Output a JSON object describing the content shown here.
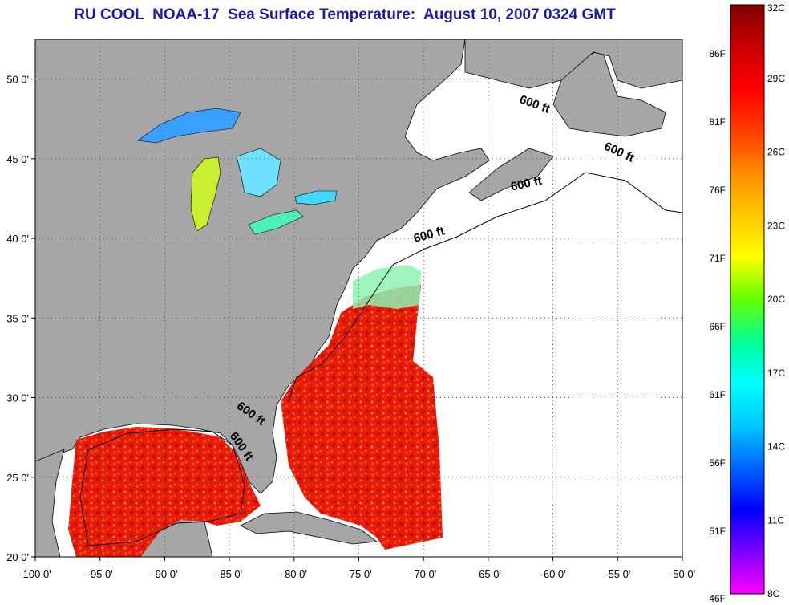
{
  "title": "RU COOL  NOAA-17  Sea Surface Temperature:  August 10, 2007 0324 GMT",
  "map": {
    "lon_range": [
      -100,
      -50
    ],
    "lat_range": [
      20,
      52.5
    ],
    "lon_ticks": [
      "-100 0'",
      "-95 0'",
      "-90 0'",
      "-85 0'",
      "-80 0'",
      "-75 0'",
      "-70 0'",
      "-65 0'",
      "-60 0'",
      "-55 0'",
      "-50 0'"
    ],
    "lat_ticks": [
      "20 0'",
      "25 0'",
      "30 0'",
      "35 0'",
      "40 0'",
      "45 0'",
      "50 0'"
    ],
    "lat_values": [
      20,
      25,
      30,
      35,
      40,
      45,
      50
    ],
    "lon_values": [
      -100,
      -95,
      -90,
      -85,
      -80,
      -75,
      -70,
      -65,
      -60,
      -55,
      -50
    ],
    "grid": "dotted",
    "land_color": "#a6a6a6",
    "ocean_no_data_color": "#ffffff",
    "isobath_labels": [
      {
        "text": "600 ft",
        "lon": -61.5,
        "lat": 48.2,
        "angle": 20
      },
      {
        "text": "600 ft",
        "lon": -55.0,
        "lat": 45.2,
        "angle": 25
      },
      {
        "text": "600 ft",
        "lon": -62.0,
        "lat": 43.2,
        "angle": -12
      },
      {
        "text": "600 ft",
        "lon": -69.5,
        "lat": 40.0,
        "angle": -15
      },
      {
        "text": "600 ft",
        "lon": -83.5,
        "lat": 28.8,
        "angle": 35
      },
      {
        "text": "600 ft",
        "lon": -84.3,
        "lat": 26.8,
        "angle": 55
      }
    ]
  },
  "colorbar": {
    "celsius": [
      "32C",
      "29C",
      "26C",
      "23C",
      "20C",
      "17C",
      "14C",
      "11C",
      "8C"
    ],
    "fahrenheit": [
      "86F",
      "81F",
      "76F",
      "71F",
      "66F",
      "61F",
      "56F",
      "51F",
      "46F"
    ],
    "c_values": [
      32,
      29,
      26,
      23,
      20,
      17,
      14,
      11,
      8
    ],
    "f_values": [
      86,
      81,
      76,
      71,
      66,
      61,
      56,
      51,
      46
    ],
    "range_c": [
      8,
      32
    ],
    "colors": [
      "#ff00ff",
      "#7a00ff",
      "#0000ff",
      "#0064ff",
      "#00c8ff",
      "#00ffff",
      "#00ff96",
      "#64ff00",
      "#ffff00",
      "#ffc800",
      "#ff8c00",
      "#ff3c00",
      "#ff0000",
      "#c80000",
      "#800000"
    ]
  }
}
